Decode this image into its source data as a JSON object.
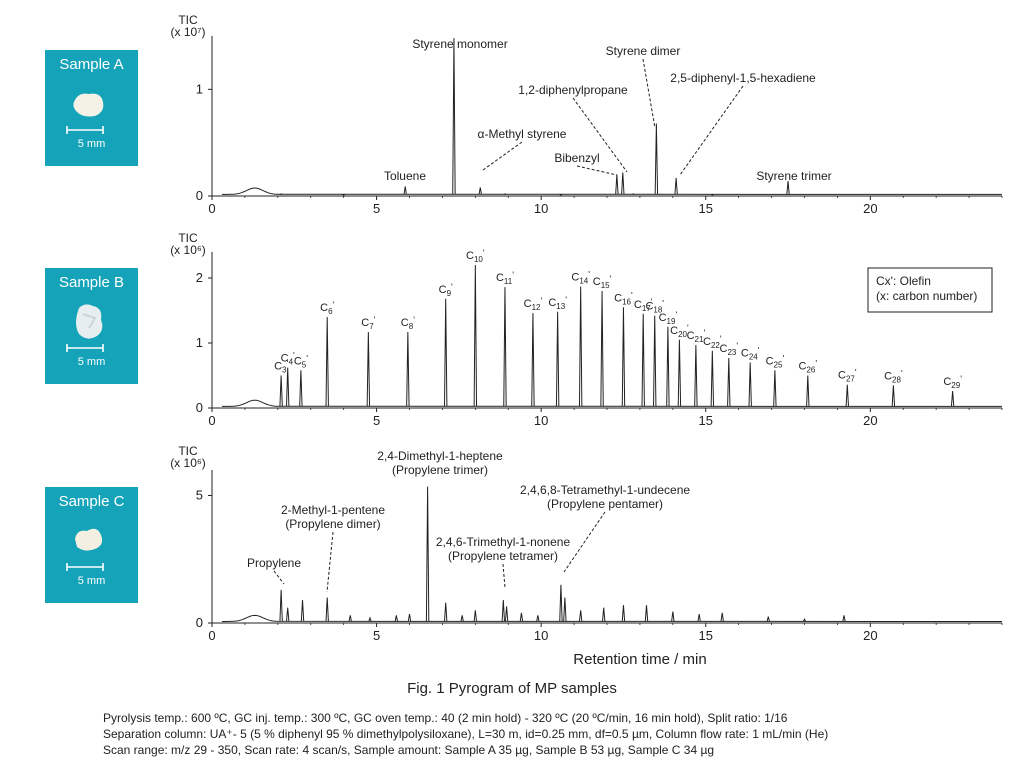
{
  "samples": [
    {
      "label": "Sample A",
      "scale": "5 mm"
    },
    {
      "label": "Sample B",
      "scale": "5 mm"
    },
    {
      "label": "Sample C",
      "scale": "5 mm"
    }
  ],
  "caption": "Fig. 1 Pyrogram of MP samples",
  "conditions": [
    "Pyrolysis temp.: 600 ºC, GC inj. temp.: 300 ºC, GC oven temp.: 40 (2 min hold) - 320 ºC (20 ºC/min, 16 min hold), Split ratio: 1/16",
    "Separation column: UA⁺- 5 (5 % diphenyl 95 % dimethylpolysiloxane), L=30 m, id=0.25 mm, df=0.5 µm, Column flow rate: 1 mL/min (He)",
    "Scan range: m/z 29 - 350, Scan rate: 4 scan/s, Sample amount: Sample A 35 µg, Sample B 53 µg, Sample C 34 µg"
  ],
  "chart_data": [
    {
      "type": "line",
      "sample": "Sample A",
      "ylabel": "TIC",
      "yunit": "(x 10⁷)",
      "xlabel": "",
      "xlim": [
        0,
        24
      ],
      "ylim": [
        0,
        1.5
      ],
      "xticks": [
        0,
        5,
        10,
        15,
        20
      ],
      "yticks": [
        0,
        1
      ],
      "peaks": [
        {
          "x": 2.1,
          "y": 0.02
        },
        {
          "x": 4.0,
          "y": 0.01
        },
        {
          "x": 5.87,
          "y": 0.09
        },
        {
          "x": 7.35,
          "y": 1.48
        },
        {
          "x": 8.15,
          "y": 0.08
        },
        {
          "x": 8.9,
          "y": 0.02
        },
        {
          "x": 10.6,
          "y": 0.01
        },
        {
          "x": 12.3,
          "y": 0.2
        },
        {
          "x": 12.48,
          "y": 0.22
        },
        {
          "x": 12.8,
          "y": 0.02
        },
        {
          "x": 13.5,
          "y": 0.68
        },
        {
          "x": 14.1,
          "y": 0.17
        },
        {
          "x": 15.2,
          "y": 0.01
        },
        {
          "x": 17.5,
          "y": 0.14
        }
      ],
      "annotations": [
        {
          "text": "Toluene",
          "x": 5.87
        },
        {
          "text": "Styrene monomer",
          "x": 7.35
        },
        {
          "text": "α-Methyl styrene",
          "x": 8.15
        },
        {
          "text": "Bibenzyl",
          "x": 12.3
        },
        {
          "text": "1,2-diphenylpropane",
          "x": 12.48
        },
        {
          "text": "Styrene dimer",
          "x": 13.5
        },
        {
          "text": "2,5-diphenyl-1,5-hexadiene",
          "x": 14.1
        },
        {
          "text": "Styrene trimer",
          "x": 17.5
        }
      ]
    },
    {
      "type": "line",
      "sample": "Sample B",
      "ylabel": "TIC",
      "yunit": "(x 10⁶)",
      "xlabel": "",
      "xlim": [
        0,
        24
      ],
      "ylim": [
        0,
        2.4
      ],
      "xticks": [
        0,
        5,
        10,
        15,
        20
      ],
      "yticks": [
        0,
        1,
        2
      ],
      "legend_box": [
        "Cx': Olefin",
        "(x: carbon number)"
      ],
      "peaks": [
        {
          "x": 2.1,
          "y": 0.5,
          "label": "C3'"
        },
        {
          "x": 2.3,
          "y": 0.62,
          "label": "C4'"
        },
        {
          "x": 2.7,
          "y": 0.58,
          "label": "C5'"
        },
        {
          "x": 3.5,
          "y": 1.4,
          "label": "C6'"
        },
        {
          "x": 4.75,
          "y": 1.17,
          "label": "C7'"
        },
        {
          "x": 5.95,
          "y": 1.17,
          "label": "C8'"
        },
        {
          "x": 7.1,
          "y": 1.68,
          "label": "C9'"
        },
        {
          "x": 8.0,
          "y": 2.2,
          "label": "C10'"
        },
        {
          "x": 8.9,
          "y": 1.86,
          "label": "C11'"
        },
        {
          "x": 9.75,
          "y": 1.46,
          "label": "C12'"
        },
        {
          "x": 10.5,
          "y": 1.48,
          "label": "C13'"
        },
        {
          "x": 11.2,
          "y": 1.87,
          "label": "C14'"
        },
        {
          "x": 11.85,
          "y": 1.8,
          "label": "C15'"
        },
        {
          "x": 12.5,
          "y": 1.55,
          "label": "C16'"
        },
        {
          "x": 13.1,
          "y": 1.45,
          "label": "C17'"
        },
        {
          "x": 13.45,
          "y": 1.42,
          "label": "C18'"
        },
        {
          "x": 13.85,
          "y": 1.25,
          "label": "C19'"
        },
        {
          "x": 14.2,
          "y": 1.05,
          "label": "C20'"
        },
        {
          "x": 14.7,
          "y": 0.97,
          "label": "C21'"
        },
        {
          "x": 15.2,
          "y": 0.88,
          "label": "C22'"
        },
        {
          "x": 15.7,
          "y": 0.77,
          "label": "C23'"
        },
        {
          "x": 16.35,
          "y": 0.7,
          "label": "C24'"
        },
        {
          "x": 17.1,
          "y": 0.58,
          "label": "C25'"
        },
        {
          "x": 18.1,
          "y": 0.5,
          "label": "C26'"
        },
        {
          "x": 19.3,
          "y": 0.36,
          "label": "C27'"
        },
        {
          "x": 20.7,
          "y": 0.35,
          "label": "C28'"
        },
        {
          "x": 22.5,
          "y": 0.26,
          "label": "C29'"
        }
      ]
    },
    {
      "type": "line",
      "sample": "Sample C",
      "ylabel": "TIC",
      "yunit": "(x 10⁶)",
      "xlabel": "Retention time / min",
      "xlim": [
        0,
        24
      ],
      "ylim": [
        0,
        6
      ],
      "xticks": [
        0,
        5,
        10,
        15,
        20
      ],
      "yticks": [
        0,
        5
      ],
      "peaks": [
        {
          "x": 2.1,
          "y": 1.3
        },
        {
          "x": 2.3,
          "y": 0.6
        },
        {
          "x": 2.75,
          "y": 0.9
        },
        {
          "x": 3.5,
          "y": 1.0
        },
        {
          "x": 4.2,
          "y": 0.3
        },
        {
          "x": 4.8,
          "y": 0.2
        },
        {
          "x": 5.6,
          "y": 0.3
        },
        {
          "x": 6.0,
          "y": 0.35
        },
        {
          "x": 6.55,
          "y": 5.35
        },
        {
          "x": 7.1,
          "y": 0.8
        },
        {
          "x": 7.6,
          "y": 0.3
        },
        {
          "x": 8.0,
          "y": 0.5
        },
        {
          "x": 8.85,
          "y": 0.9
        },
        {
          "x": 8.95,
          "y": 0.65
        },
        {
          "x": 9.4,
          "y": 0.4
        },
        {
          "x": 9.9,
          "y": 0.3
        },
        {
          "x": 10.6,
          "y": 1.5
        },
        {
          "x": 10.72,
          "y": 1.0
        },
        {
          "x": 11.2,
          "y": 0.5
        },
        {
          "x": 11.9,
          "y": 0.6
        },
        {
          "x": 12.5,
          "y": 0.7
        },
        {
          "x": 13.2,
          "y": 0.7
        },
        {
          "x": 14.0,
          "y": 0.45
        },
        {
          "x": 14.8,
          "y": 0.35
        },
        {
          "x": 15.5,
          "y": 0.4
        },
        {
          "x": 16.9,
          "y": 0.25
        },
        {
          "x": 18.0,
          "y": 0.15
        },
        {
          "x": 19.2,
          "y": 0.3
        }
      ],
      "annotations": [
        {
          "text": "Propylene",
          "x": 2.1
        },
        {
          "lines": [
            "2-Methyl-1-pentene",
            "(Propylene dimer)"
          ],
          "x": 3.5
        },
        {
          "lines": [
            "2,4-Dimethyl-1-heptene",
            "(Propylene trimer)"
          ],
          "x": 6.55
        },
        {
          "lines": [
            "2,4,6-Trimethyl-1-nonene",
            "(Propylene tetramer)"
          ],
          "x": 8.9
        },
        {
          "lines": [
            "2,4,6,8-Tetramethyl-1-undecene",
            "(Propylene pentamer)"
          ],
          "x": 10.65
        }
      ]
    }
  ]
}
